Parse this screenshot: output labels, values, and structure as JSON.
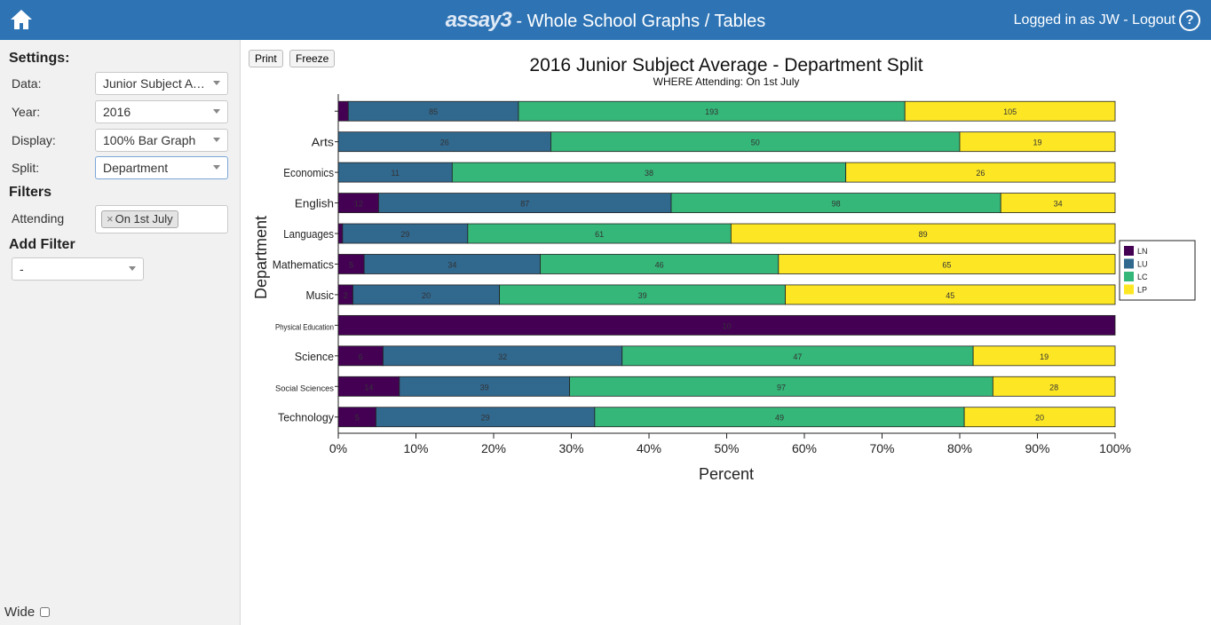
{
  "header": {
    "logo_text": "assay3",
    "title": " - Whole School Graphs / Tables",
    "login_text": "Logged in as JW - Logout",
    "help_label": "?"
  },
  "sidebar": {
    "settings_title": "Settings:",
    "settings": [
      {
        "label": "Data:",
        "value": "Junior Subject Average"
      },
      {
        "label": "Year:",
        "value": "2016"
      },
      {
        "label": "Display:",
        "value": "100% Bar Graph"
      },
      {
        "label": "Split:",
        "value": "Department"
      }
    ],
    "filters_title": "Filters",
    "filter_label": "Attending",
    "filter_tag": "On 1st July",
    "filter_tag_remove": "×",
    "add_filter_title": "Add Filter",
    "add_filter_value": "-",
    "wide_label": "Wide"
  },
  "toolbar": {
    "print_label": "Print",
    "freeze_label": "Freeze"
  },
  "colors": {
    "LN": "#440154",
    "LU": "#31688e",
    "LC": "#35b779",
    "LP": "#fde725",
    "header": "#2e74b5"
  },
  "chart_data": {
    "type": "bar",
    "orientation": "horizontal",
    "stacked": "100%",
    "title": "2016 Junior Subject Average - Department Split",
    "subtitle": "WHERE Attending: On 1st July",
    "xlabel": "Percent",
    "ylabel": "Department",
    "xlim": [
      0,
      100
    ],
    "xticks": [
      "0%",
      "10%",
      "20%",
      "30%",
      "40%",
      "50%",
      "60%",
      "70%",
      "80%",
      "90%",
      "100%"
    ],
    "legend_position": "right",
    "categories": [
      "",
      "Arts",
      "Economics",
      "English",
      "Languages",
      "Mathematics",
      "Music",
      "Physical Education",
      "Science",
      "Social Sciences",
      "Technology"
    ],
    "series": [
      {
        "name": "LN",
        "values": [
          5,
          0,
          0,
          12,
          1,
          5,
          2,
          10,
          6,
          14,
          5
        ]
      },
      {
        "name": "LU",
        "values": [
          85,
          26,
          11,
          87,
          29,
          34,
          20,
          0,
          32,
          39,
          29
        ]
      },
      {
        "name": "LC",
        "values": [
          193,
          50,
          38,
          98,
          61,
          46,
          39,
          0,
          47,
          97,
          49
        ]
      },
      {
        "name": "LP",
        "values": [
          105,
          19,
          26,
          34,
          89,
          65,
          45,
          0,
          19,
          28,
          20
        ]
      }
    ]
  }
}
